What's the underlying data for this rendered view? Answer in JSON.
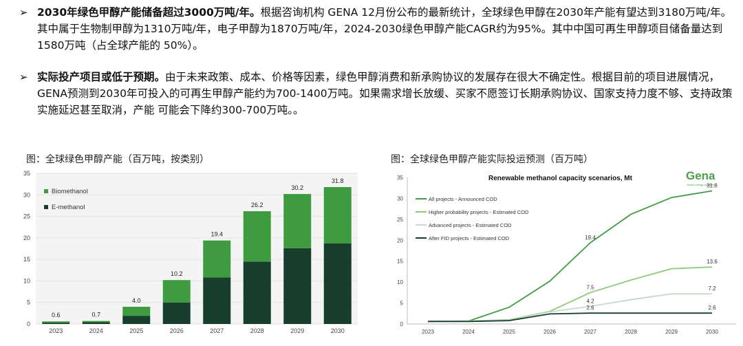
{
  "bullets": [
    {
      "bold": "2030年绿色甲醇产能储备超过3000万吨/年。",
      "text": "根据咨询机构 GENA 12月份公布的最新统计，全球绿色甲醇在2030年产能有望达到3180万吨/年。其中属于生物制甲醇为1310万吨/年，电子甲醇为1870万吨/年，2024-2030绿色甲醇产能CAGR约为95%。其中中国可再生甲醇项目储备量达到1580万吨（占全球产能的 50%）。"
    },
    {
      "bold": "实际投产项目或低于预期。",
      "text": "由于未来政策、成本、价格等因素，绿色甲醇消费和新承购协议的发展存在很大不确定性。根据目前的项目进展情况，GENA预测到2030年可投入的可再生甲醇产能约为700-1400万吨。如果需求增长放缓、买家不愿签订长期承购协议、国家支持力度不够、支持政策实施延迟甚至取消，产能 可能会下降约300-700万吨。。"
    }
  ],
  "arrow_glyph": "➢",
  "colors": {
    "bio": "#3f9b3f",
    "emeth": "#173d2c"
  },
  "chart_data": [
    {
      "type": "bar",
      "caption": "图：全球绿色甲醇产能（百万吨，按类别）",
      "categories": [
        "2023",
        "2024",
        "2025",
        "2026",
        "2027",
        "2028",
        "2029",
        "2030"
      ],
      "series": [
        {
          "name": "E-methanol",
          "values": [
            0.3,
            0.4,
            1.9,
            5.0,
            10.8,
            14.5,
            17.6,
            18.7
          ]
        },
        {
          "name": "Biomethanol",
          "values": [
            0.3,
            0.3,
            2.1,
            5.2,
            8.6,
            11.7,
            12.6,
            13.1
          ]
        }
      ],
      "totals": [
        "0.6",
        "0.7",
        "4.0",
        "10.2",
        "19.4",
        "26.2",
        "30.2",
        "31.8"
      ],
      "ylim": [
        0,
        35
      ],
      "yticks": [
        "0",
        "5",
        "10",
        "15",
        "20",
        "25",
        "30",
        "35"
      ],
      "legend": [
        "Biomethanol",
        "E-methanol"
      ]
    },
    {
      "type": "line",
      "caption": "图：全球绿色甲醇产能实际投运预测（百万吨）",
      "title": "Renewable methanol capacity scenarios, Mt",
      "logo": "Gena",
      "logo_sub": "Green energy solutions",
      "x": [
        "2023",
        "2024",
        "2025",
        "2026",
        "2027",
        "2028",
        "2029",
        "2030"
      ],
      "ylim": [
        0,
        35
      ],
      "yticks": [
        "0",
        "5",
        "10",
        "15",
        "20",
        "25",
        "30",
        "35"
      ],
      "series": [
        {
          "name": "All projects - Announced COD",
          "color": "#3f9b3f",
          "values": [
            0.6,
            0.7,
            4.0,
            10.2,
            19.4,
            26.2,
            30.2,
            31.8
          ]
        },
        {
          "name": "Higher probability projects - Estimated COD",
          "color": "#8fcb7d",
          "values": [
            0.6,
            0.7,
            1.0,
            3.0,
            7.5,
            10.5,
            13.2,
            13.6
          ]
        },
        {
          "name": "Advanced projects - Estimated COD",
          "color": "#c5d9cc",
          "values": [
            0.6,
            0.7,
            0.9,
            2.9,
            4.2,
            5.8,
            7.2,
            7.2
          ]
        },
        {
          "name": "After FID projects - Estimated COD",
          "color": "#173d2c",
          "values": [
            0.6,
            0.6,
            0.8,
            2.4,
            2.6,
            2.6,
            2.6,
            2.6
          ]
        }
      ],
      "labels": [
        {
          "text": "31.8",
          "series": 0,
          "index": 7
        },
        {
          "text": "19.4",
          "series": 0,
          "index": 4
        },
        {
          "text": "13.6",
          "series": 1,
          "index": 7
        },
        {
          "text": "7.5",
          "series": 1,
          "index": 4
        },
        {
          "text": "7.2",
          "series": 2,
          "index": 7
        },
        {
          "text": "4.2",
          "series": 2,
          "index": 4
        },
        {
          "text": "2.6",
          "series": 3,
          "index": 7
        },
        {
          "text": "2.6",
          "series": 3,
          "index": 4
        }
      ]
    }
  ]
}
